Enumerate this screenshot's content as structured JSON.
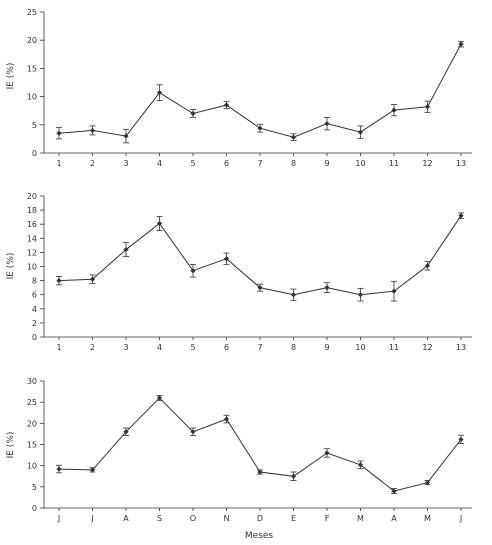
{
  "chart_data": [
    {
      "type": "line",
      "ylabel": "IE (%)",
      "xlabel": "",
      "ylim": [
        0,
        25
      ],
      "yticks": [
        0,
        5,
        10,
        15,
        20,
        25
      ],
      "categories": [
        "1",
        "2",
        "3",
        "4",
        "5",
        "6",
        "7",
        "8",
        "9",
        "10",
        "11",
        "12",
        "13"
      ],
      "values": [
        3.5,
        4.0,
        3.0,
        10.7,
        7.0,
        8.5,
        4.4,
        2.8,
        5.2,
        3.7,
        7.6,
        8.2,
        19.3
      ],
      "errors": [
        1.0,
        0.8,
        1.2,
        1.4,
        0.7,
        0.6,
        0.7,
        0.6,
        1.1,
        1.1,
        1.0,
        1.0,
        0.5
      ],
      "grid": false,
      "color": "#333333"
    },
    {
      "type": "line",
      "ylabel": "IE (%)",
      "xlabel": "",
      "ylim": [
        0,
        20
      ],
      "yticks": [
        0,
        2,
        4,
        6,
        8,
        10,
        12,
        14,
        16,
        18,
        20
      ],
      "categories": [
        "1",
        "2",
        "3",
        "4",
        "5",
        "6",
        "7",
        "8",
        "9",
        "10",
        "11",
        "12",
        "13"
      ],
      "values": [
        8.0,
        8.2,
        12.4,
        16.1,
        9.4,
        11.1,
        7.0,
        6.0,
        7.0,
        6.0,
        6.5,
        10.1,
        17.2
      ],
      "errors": [
        0.6,
        0.6,
        1.0,
        1.0,
        0.9,
        0.8,
        0.5,
        0.8,
        0.7,
        0.9,
        1.4,
        0.6,
        0.4
      ],
      "grid": false,
      "color": "#333333"
    },
    {
      "type": "line",
      "ylabel": "IE (%)",
      "xlabel": "Meses",
      "ylim": [
        0,
        30
      ],
      "yticks": [
        0,
        5,
        10,
        15,
        20,
        25,
        30
      ],
      "categories": [
        "J",
        "J",
        "A",
        "S",
        "O",
        "N",
        "D",
        "E",
        "F",
        "M",
        "A",
        "M",
        "J"
      ],
      "values": [
        9.2,
        9.0,
        18.0,
        26.0,
        18.0,
        21.0,
        8.5,
        7.5,
        13.0,
        10.2,
        4.0,
        6.0,
        16.2
      ],
      "errors": [
        0.9,
        0.5,
        0.9,
        0.6,
        0.9,
        0.9,
        0.5,
        1.0,
        1.0,
        0.9,
        0.6,
        0.5,
        1.0
      ],
      "grid": false,
      "color": "#333333"
    }
  ]
}
